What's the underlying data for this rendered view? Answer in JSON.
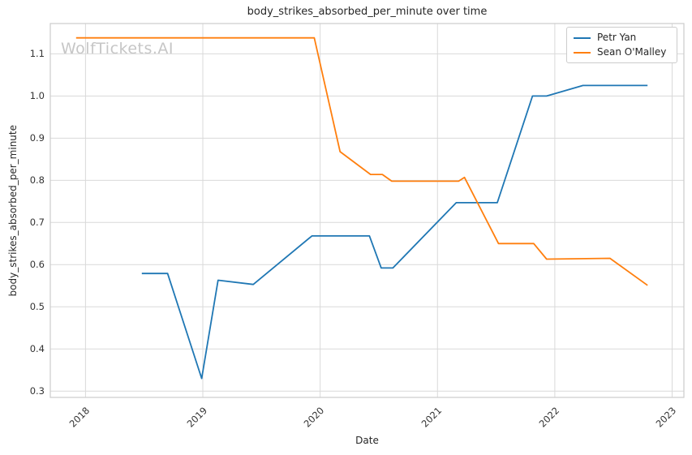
{
  "watermark": "WolfTickets.AI",
  "chart_data": {
    "type": "line",
    "title": "body_strikes_absorbed_per_minute over time",
    "xlabel": "Date",
    "ylabel": "body_strikes_absorbed_per_minute",
    "grid": true,
    "legend_position": "upper right",
    "xlim": [
      2017.7,
      2023.1
    ],
    "ylim": [
      0.285,
      1.172
    ],
    "xticks": {
      "values": [
        2018,
        2019,
        2020,
        2021,
        2022,
        2023
      ],
      "labels": [
        "2018",
        "2019",
        "2020",
        "2021",
        "2022",
        "2023"
      ]
    },
    "yticks": {
      "values": [
        0.3,
        0.4,
        0.5,
        0.6,
        0.7,
        0.8,
        0.9,
        1.0,
        1.1
      ],
      "labels": [
        "0.3",
        "0.4",
        "0.5",
        "0.6",
        "0.7",
        "0.8",
        "0.9",
        "1.0",
        "1.1"
      ]
    },
    "series": [
      {
        "name": "Petr Yan",
        "color": "#1f77b4",
        "x": [
          2018.48,
          2018.7,
          2018.99,
          2019.13,
          2019.43,
          2019.93,
          2020.42,
          2020.52,
          2020.62,
          2021.16,
          2021.51,
          2021.81,
          2021.93,
          2022.24,
          2022.79
        ],
        "y": [
          0.579,
          0.579,
          0.33,
          0.563,
          0.553,
          0.668,
          0.668,
          0.592,
          0.592,
          0.747,
          0.747,
          1.0,
          1.0,
          1.025,
          1.025
        ]
      },
      {
        "name": "Sean O'Malley",
        "color": "#ff7f0e",
        "x": [
          2017.92,
          2019.95,
          2020.17,
          2020.43,
          2020.53,
          2020.61,
          2021.18,
          2021.23,
          2021.52,
          2021.82,
          2021.93,
          2022.47,
          2022.79
        ],
        "y": [
          1.138,
          1.138,
          0.868,
          0.814,
          0.814,
          0.798,
          0.798,
          0.807,
          0.65,
          0.65,
          0.613,
          0.615,
          0.551
        ]
      }
    ]
  }
}
